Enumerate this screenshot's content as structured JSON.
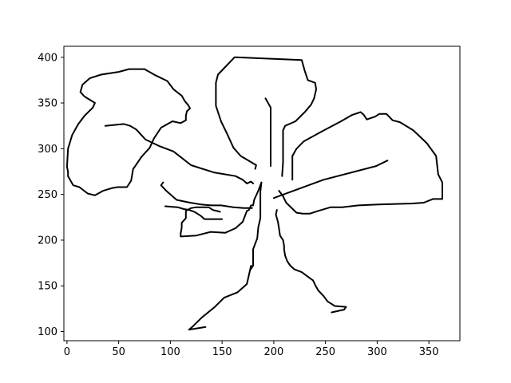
{
  "chart_data": {
    "type": "line",
    "title": "",
    "xlabel": "",
    "ylabel": "",
    "xlim": [
      -3,
      380
    ],
    "ylim": [
      90,
      412
    ],
    "x_ticks": [
      0,
      50,
      100,
      150,
      200,
      250,
      300,
      350
    ],
    "y_ticks": [
      100,
      150,
      200,
      250,
      300,
      350,
      400
    ],
    "x_tick_labels": [
      "0",
      "50",
      "100",
      "150",
      "200",
      "250",
      "300",
      "350"
    ],
    "y_tick_labels": [
      "100",
      "150",
      "200",
      "250",
      "300",
      "350",
      "400"
    ],
    "grid": false,
    "legend": "none",
    "line_color": "#000000",
    "series": [
      {
        "points": [
          [
            163,
            400
          ],
          [
            227,
            397
          ],
          [
            230,
            385
          ],
          [
            233,
            375
          ],
          [
            240,
            372
          ],
          [
            241,
            365
          ],
          [
            239,
            355
          ],
          [
            236,
            348
          ],
          [
            230,
            340
          ],
          [
            221,
            330
          ],
          [
            211,
            325
          ],
          [
            209,
            320
          ]
        ]
      },
      {
        "points": [
          [
            162,
            400
          ],
          [
            146,
            381
          ],
          [
            144,
            372
          ],
          [
            144,
            347
          ],
          [
            149,
            330
          ],
          [
            155,
            316
          ],
          [
            161,
            301
          ],
          [
            168,
            292
          ],
          [
            183,
            282
          ],
          [
            182,
            278
          ]
        ]
      },
      {
        "points": [
          [
            192,
            355
          ],
          [
            197,
            345
          ],
          [
            197,
            281
          ]
        ]
      },
      {
        "points": [
          [
            209,
            320
          ],
          [
            209,
            302
          ],
          [
            209,
            285
          ],
          [
            208,
            270
          ]
        ]
      },
      {
        "points": [
          [
            218,
            292
          ],
          [
            218,
            266
          ]
        ]
      },
      {
        "points": [
          [
            218,
            292
          ],
          [
            222,
            300
          ],
          [
            229,
            308
          ],
          [
            245,
            318
          ],
          [
            265,
            330
          ],
          [
            276,
            337
          ],
          [
            284,
            340
          ],
          [
            287,
            337
          ],
          [
            290,
            332
          ],
          [
            298,
            335
          ],
          [
            302,
            338
          ],
          [
            309,
            338
          ],
          [
            315,
            331
          ],
          [
            322,
            329
          ],
          [
            335,
            320
          ],
          [
            348,
            306
          ],
          [
            357,
            292
          ],
          [
            359,
            272
          ],
          [
            363,
            263
          ],
          [
            363,
            245
          ],
          [
            354,
            245
          ],
          [
            345,
            241
          ],
          [
            333,
            240
          ],
          [
            301,
            239
          ],
          [
            282,
            238
          ],
          [
            266,
            236
          ],
          [
            255,
            236
          ],
          [
            243,
            232
          ],
          [
            235,
            229
          ],
          [
            228,
            229
          ],
          [
            222,
            230
          ],
          [
            212,
            241
          ],
          [
            209,
            248
          ],
          [
            205,
            254
          ]
        ]
      },
      {
        "points": [
          [
            310,
            287
          ],
          [
            299,
            281
          ],
          [
            248,
            266
          ],
          [
            200,
            246
          ]
        ]
      },
      {
        "points": [
          [
            178,
            172
          ],
          [
            174,
            152
          ],
          [
            165,
            143
          ],
          [
            152,
            137
          ],
          [
            143,
            127
          ],
          [
            130,
            115
          ],
          [
            122,
            106
          ],
          [
            118,
            102
          ],
          [
            134,
            105
          ]
        ]
      },
      {
        "points": [
          [
            188,
            263
          ],
          [
            185,
            254
          ],
          [
            181,
            244
          ],
          [
            180,
            238
          ],
          [
            178,
            238
          ],
          [
            176,
            233
          ],
          [
            174,
            232
          ],
          [
            170,
            220
          ],
          [
            163,
            213
          ],
          [
            153,
            208
          ],
          [
            139,
            209
          ],
          [
            125,
            205
          ],
          [
            110,
            204
          ],
          [
            110,
            207
          ],
          [
            111,
            214
          ],
          [
            111,
            219
          ],
          [
            115,
            224
          ],
          [
            115,
            232
          ],
          [
            120,
            235
          ],
          [
            125,
            236
          ],
          [
            133,
            236
          ],
          [
            137,
            236
          ],
          [
            141,
            233
          ],
          [
            148,
            231
          ]
        ]
      },
      {
        "points": [
          [
            203,
            233
          ],
          [
            202,
            228
          ],
          [
            204,
            220
          ],
          [
            205,
            213
          ],
          [
            206,
            205
          ],
          [
            209,
            200
          ],
          [
            210,
            194
          ],
          [
            210,
            190
          ],
          [
            211,
            183
          ],
          [
            213,
            177
          ],
          [
            216,
            172
          ],
          [
            220,
            168
          ],
          [
            227,
            165
          ],
          [
            233,
            160
          ],
          [
            238,
            156
          ],
          [
            240,
            151
          ],
          [
            243,
            145
          ],
          [
            248,
            139
          ],
          [
            252,
            133
          ],
          [
            259,
            128
          ],
          [
            270,
            127
          ],
          [
            268,
            124
          ],
          [
            256,
            121
          ]
        ]
      },
      {
        "points": [
          [
            188,
            263
          ],
          [
            187,
            253
          ],
          [
            187,
            224
          ],
          [
            185,
            214
          ],
          [
            184,
            202
          ],
          [
            180,
            190
          ],
          [
            180,
            172
          ],
          [
            177,
            167
          ]
        ]
      },
      {
        "points": [
          [
            13,
            362
          ],
          [
            15,
            370
          ],
          [
            22,
            377
          ],
          [
            33,
            381
          ],
          [
            50,
            384
          ],
          [
            60,
            387
          ],
          [
            75,
            387
          ],
          [
            78,
            385
          ],
          [
            86,
            380
          ],
          [
            97,
            374
          ],
          [
            103,
            365
          ],
          [
            111,
            358
          ],
          [
            114,
            352
          ],
          [
            117,
            348
          ],
          [
            119,
            344
          ],
          [
            116,
            341
          ],
          [
            115,
            336
          ],
          [
            115,
            331
          ],
          [
            110,
            328
          ],
          [
            102,
            330
          ],
          [
            91,
            323
          ],
          [
            84,
            311
          ],
          [
            80,
            301
          ],
          [
            72,
            291
          ],
          [
            66,
            281
          ],
          [
            64,
            278
          ],
          [
            62,
            265
          ],
          [
            58,
            258
          ],
          [
            49,
            258
          ],
          [
            44,
            257
          ],
          [
            35,
            254
          ],
          [
            27,
            249
          ],
          [
            20,
            251
          ],
          [
            12,
            258
          ],
          [
            6,
            260
          ],
          [
            1,
            270
          ],
          [
            1,
            275
          ],
          [
            0,
            280
          ],
          [
            1,
            300
          ],
          [
            5,
            315
          ],
          [
            11,
            327
          ],
          [
            17,
            336
          ],
          [
            25,
            345
          ],
          [
            27,
            350
          ],
          [
            17,
            357
          ],
          [
            13,
            362
          ]
        ]
      },
      {
        "points": [
          [
            37,
            325
          ],
          [
            55,
            327
          ],
          [
            61,
            325
          ],
          [
            67,
            321
          ],
          [
            76,
            310
          ],
          [
            89,
            303
          ],
          [
            103,
            297
          ],
          [
            120,
            282
          ],
          [
            142,
            274
          ],
          [
            163,
            270
          ],
          [
            170,
            266
          ],
          [
            174,
            262
          ],
          [
            178,
            264
          ],
          [
            180,
            262
          ]
        ]
      },
      {
        "points": [
          [
            93,
            263
          ],
          [
            91,
            260
          ],
          [
            96,
            254
          ],
          [
            106,
            244
          ],
          [
            119,
            241
          ],
          [
            130,
            239
          ],
          [
            140,
            238
          ],
          [
            149,
            238
          ],
          [
            161,
            236
          ],
          [
            171,
            235
          ],
          [
            179,
            235
          ]
        ]
      },
      {
        "points": [
          [
            95,
            237
          ],
          [
            107,
            236
          ],
          [
            113,
            234
          ],
          [
            118,
            233
          ],
          [
            123,
            231
          ],
          [
            126,
            229
          ],
          [
            130,
            226
          ],
          [
            133,
            223
          ],
          [
            150,
            223
          ]
        ]
      }
    ]
  }
}
